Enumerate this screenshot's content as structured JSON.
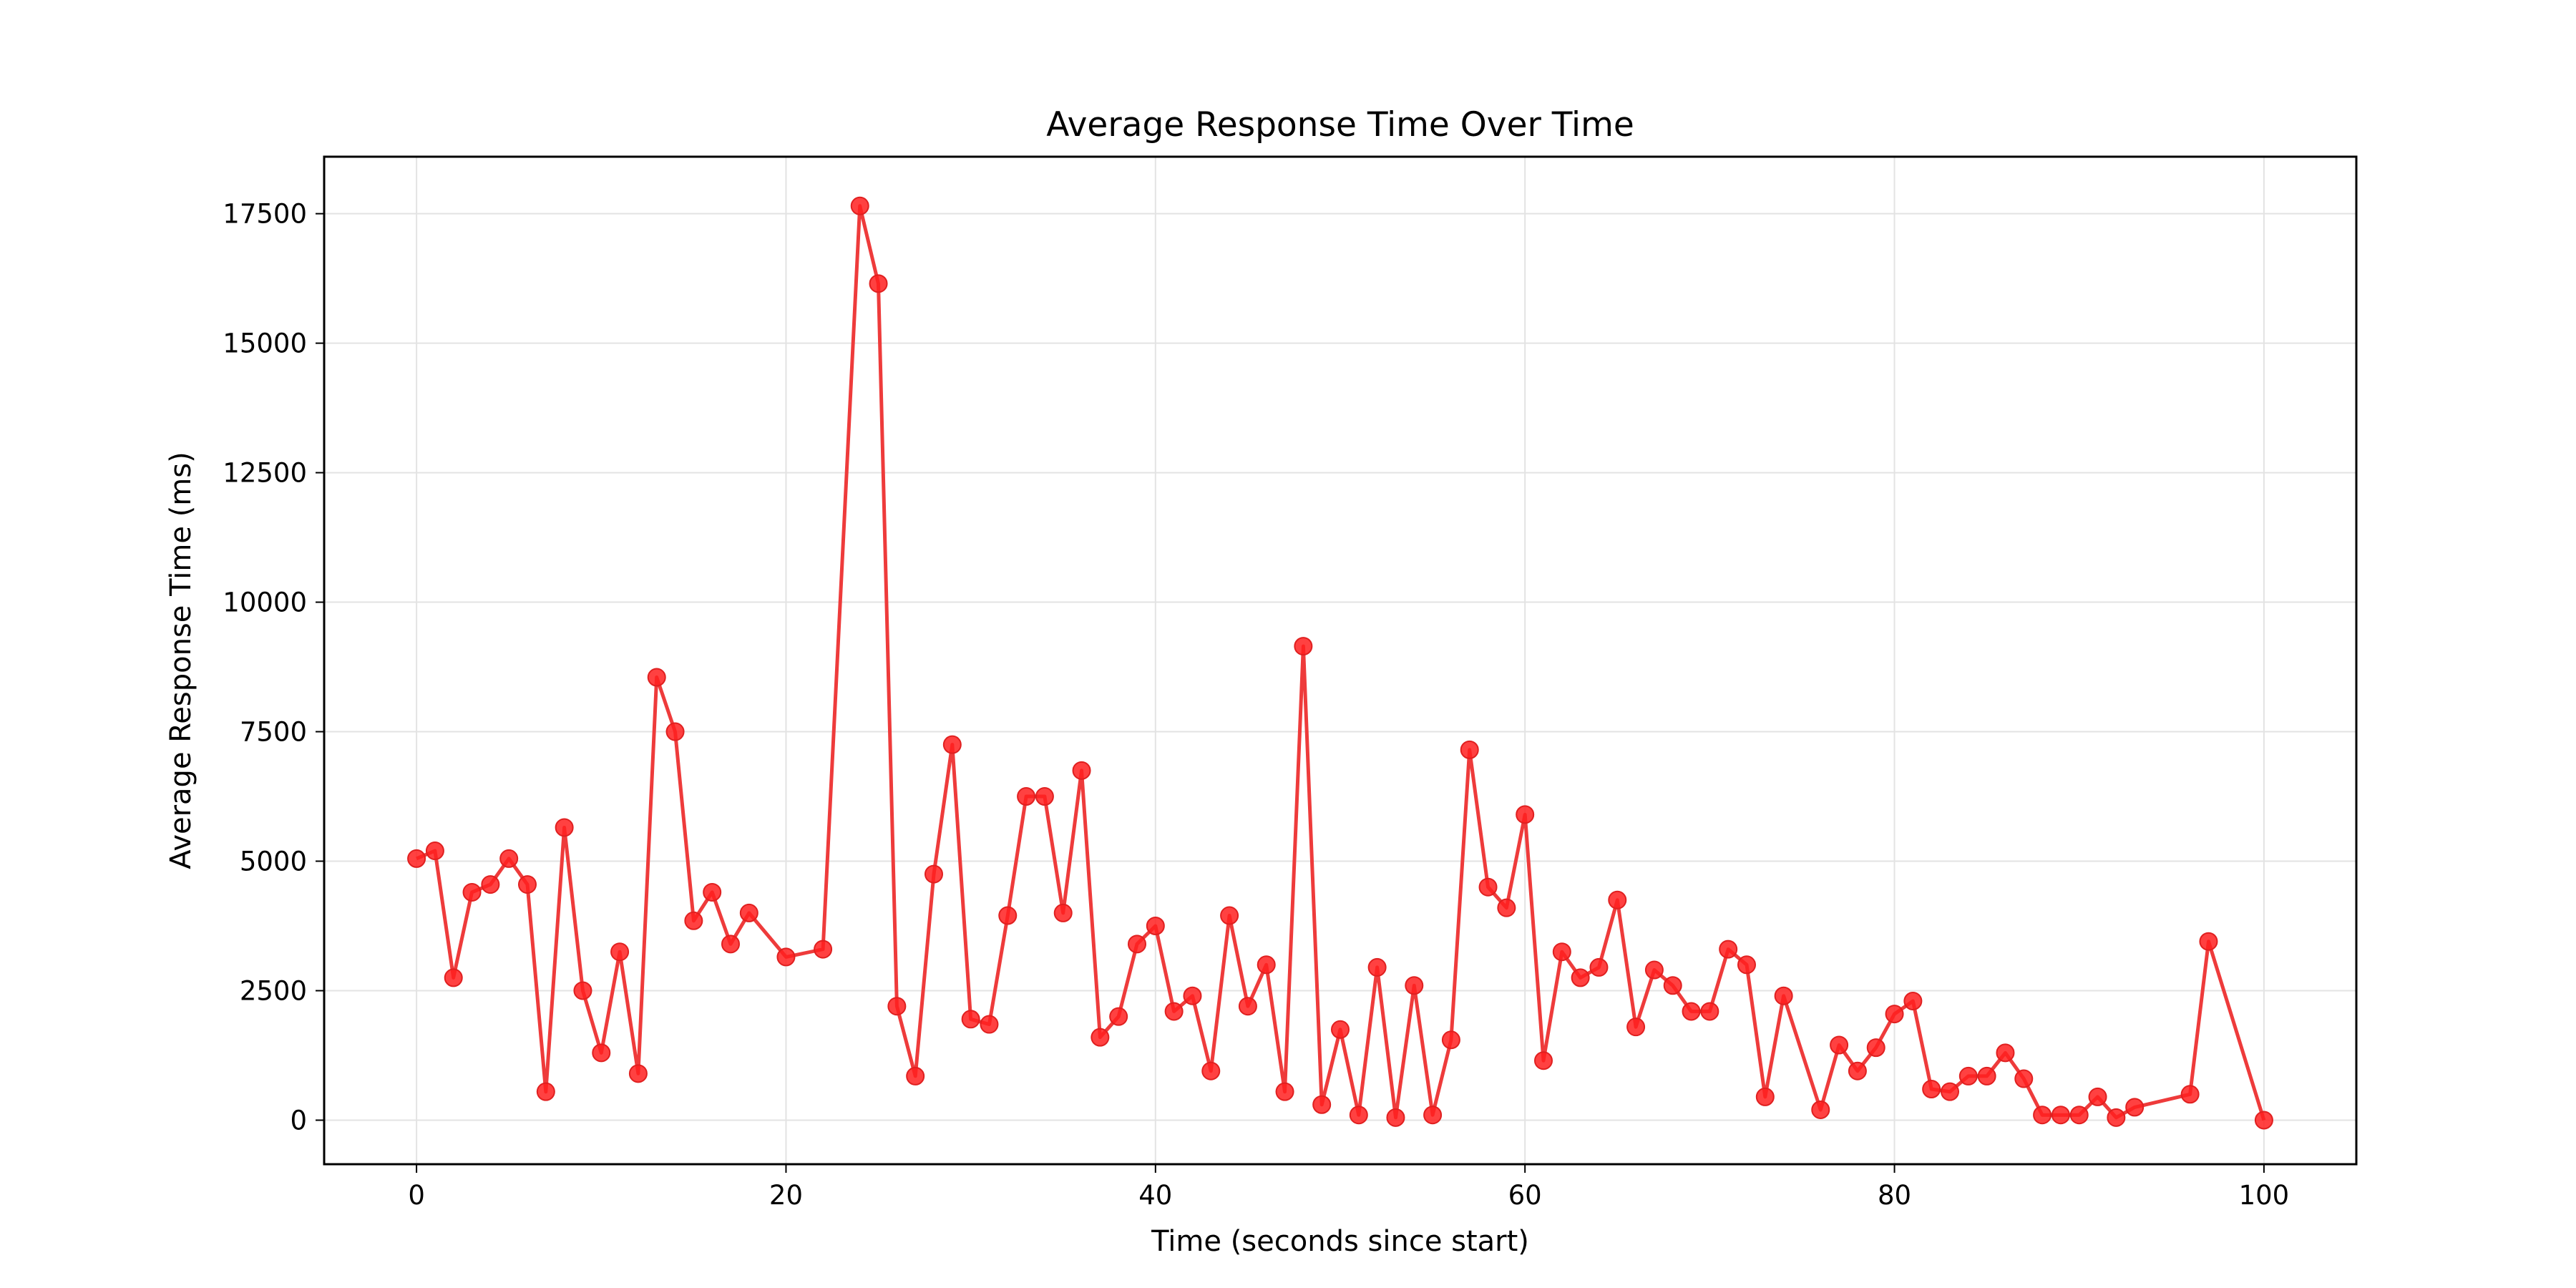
{
  "chart_data": {
    "type": "line",
    "title": "Average Response Time Over Time",
    "xlabel": "Time (seconds since start)",
    "ylabel": "Average Response Time (ms)",
    "xlim": [
      -5,
      105
    ],
    "ylim": [
      -850,
      18600
    ],
    "xticks": [
      0,
      20,
      40,
      60,
      80,
      100
    ],
    "yticks": [
      0,
      2500,
      5000,
      7500,
      10000,
      12500,
      15000,
      17500
    ],
    "grid": true,
    "line_color": "#ee3b3b",
    "marker_color": "#ff2020",
    "series": [
      {
        "x": [
          0,
          1,
          2,
          3,
          4,
          5,
          6,
          7,
          8,
          9,
          10,
          11,
          12,
          13,
          14,
          15,
          16,
          17,
          18,
          20,
          22,
          24,
          25,
          26,
          27,
          28,
          29,
          30,
          31,
          32,
          33,
          34,
          35,
          36,
          37,
          38,
          39,
          40,
          41,
          42,
          43,
          44,
          45,
          46,
          47,
          48,
          49,
          50,
          51,
          52,
          53,
          54,
          55,
          56,
          57,
          58,
          59,
          60,
          61,
          62,
          63,
          64,
          65,
          66,
          67,
          68,
          69,
          70,
          71,
          72,
          73,
          74,
          76,
          77,
          78,
          79,
          80,
          81,
          82,
          83,
          84,
          85,
          86,
          87,
          88,
          89,
          90,
          91,
          92,
          93,
          96,
          97,
          100
        ],
        "y": [
          5050,
          5200,
          2750,
          4400,
          4550,
          5050,
          4550,
          550,
          5650,
          2500,
          1300,
          3250,
          900,
          8550,
          7500,
          3850,
          4400,
          3400,
          4000,
          3150,
          3300,
          17650,
          16150,
          2200,
          850,
          4750,
          7250,
          1950,
          1850,
          3950,
          6250,
          6250,
          4000,
          6750,
          1600,
          2000,
          3400,
          3750,
          2100,
          2400,
          950,
          3950,
          2200,
          3000,
          550,
          9150,
          300,
          1750,
          100,
          2950,
          50,
          2600,
          100,
          1550,
          7150,
          4500,
          4100,
          5900,
          1150,
          3250,
          2750,
          2950,
          4250,
          1800,
          2900,
          2600,
          2100,
          2100,
          3300,
          3000,
          450,
          2400,
          200,
          1450,
          950,
          1400,
          2050,
          2300,
          600,
          550,
          850,
          850,
          1300,
          800,
          100,
          100,
          100,
          450,
          50,
          250,
          500,
          3450,
          0
        ]
      }
    ]
  }
}
